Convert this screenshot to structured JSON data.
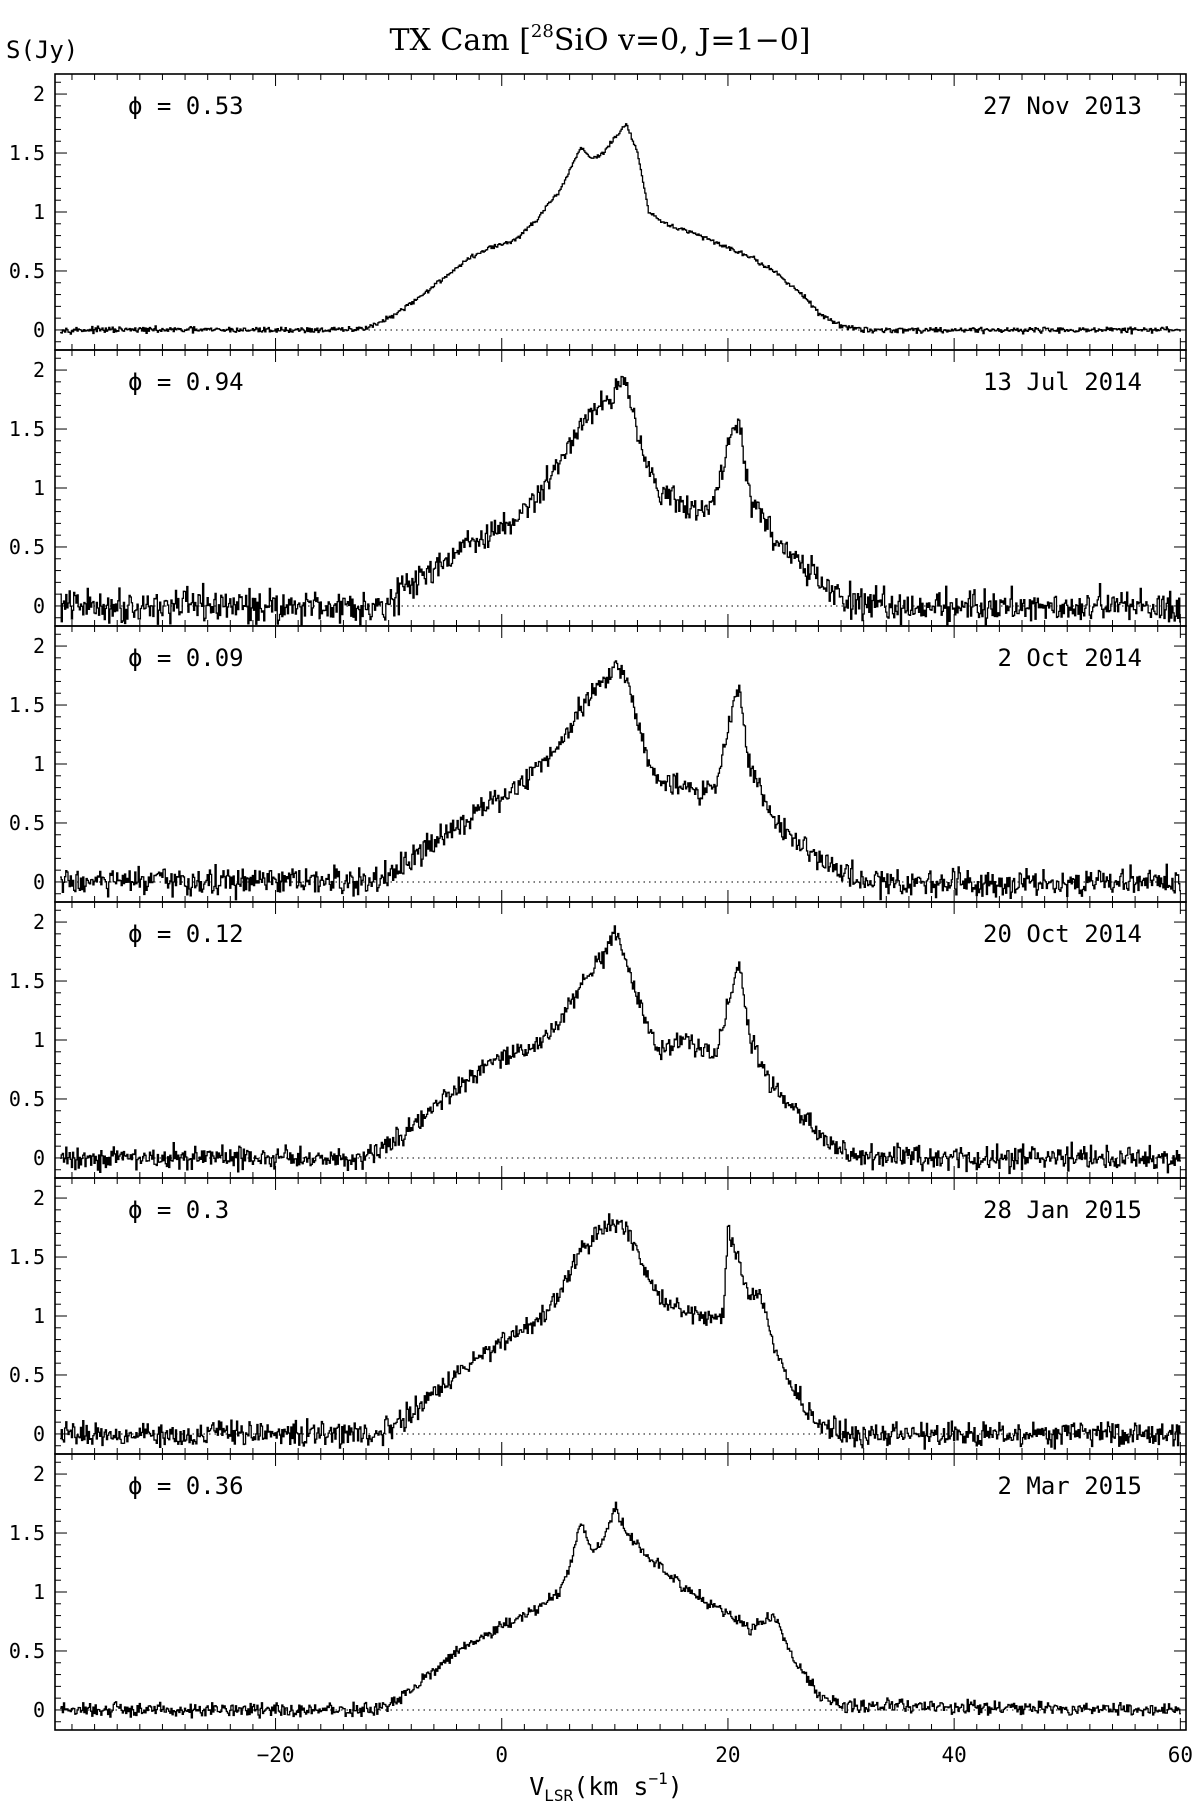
{
  "chart_data": {
    "type": "line",
    "style": "step",
    "title_prefix": "TX Cam [",
    "title_isotope": "28",
    "title_suffix": "SiO v=0, J=1−0]",
    "ylabel": "S(Jy)",
    "xlabel_main": "V",
    "xlabel_sub": "LSR",
    "xlabel_unit": "(km s",
    "xlabel_exp": "−1",
    "xlabel_close": ")",
    "xlim": [
      -39.5,
      60.5
    ],
    "ylim": [
      -0.17,
      2.17
    ],
    "x_ticks": [
      -20,
      0,
      20,
      40,
      60
    ],
    "x_tick_labels": [
      "−20",
      "0",
      "20",
      "40",
      "60"
    ],
    "y_ticks": [
      0,
      0.5,
      1,
      1.5,
      2
    ],
    "y_tick_labels": [
      "0",
      "0.5",
      "1",
      "1.5",
      "2"
    ],
    "panels": [
      {
        "phase_label": "ϕ = 0.53",
        "date": "27 Nov 2013",
        "noise": 0.012,
        "x": [
          -39,
          -13,
          -11,
          -9,
          -7,
          -5,
          -3,
          -1,
          1,
          3,
          4,
          5,
          7,
          8,
          9,
          11,
          12,
          13,
          14,
          16,
          18,
          20,
          22,
          24,
          26,
          28,
          30,
          32,
          60
        ],
        "y": [
          0,
          0,
          0.05,
          0.15,
          0.3,
          0.45,
          0.6,
          0.7,
          0.75,
          0.92,
          1.05,
          1.15,
          1.55,
          1.45,
          1.5,
          1.75,
          1.5,
          1.0,
          0.92,
          0.85,
          0.78,
          0.7,
          0.62,
          0.5,
          0.35,
          0.15,
          0.03,
          0,
          0
        ]
      },
      {
        "phase_label": "ϕ = 0.94",
        "date": "13 Jul 2014",
        "noise": 0.07,
        "x": [
          -39,
          -11,
          -9,
          -7,
          -5,
          -3,
          -1,
          1,
          3,
          5,
          7,
          9,
          10,
          11,
          12,
          13,
          14,
          16,
          18,
          19,
          20,
          21,
          22,
          24,
          26,
          28,
          30,
          32,
          60
        ],
        "y": [
          0,
          0,
          0.1,
          0.25,
          0.4,
          0.52,
          0.6,
          0.72,
          0.9,
          1.2,
          1.55,
          1.75,
          1.8,
          1.9,
          1.5,
          1.2,
          0.95,
          0.85,
          0.8,
          0.95,
          1.4,
          1.55,
          0.9,
          0.6,
          0.4,
          0.2,
          0.08,
          0,
          0
        ]
      },
      {
        "phase_label": "ϕ = 0.09",
        "date": "2 Oct 2014",
        "noise": 0.06,
        "x": [
          -39,
          -11,
          -9,
          -7,
          -5,
          -3,
          -1,
          1,
          3,
          5,
          7,
          9,
          10,
          11,
          12,
          13,
          14,
          16,
          18,
          19,
          20,
          21,
          22,
          24,
          26,
          28,
          30,
          32,
          60
        ],
        "y": [
          0,
          0,
          0.1,
          0.25,
          0.42,
          0.55,
          0.65,
          0.78,
          0.95,
          1.15,
          1.5,
          1.7,
          1.85,
          1.75,
          1.35,
          1.05,
          0.85,
          0.8,
          0.75,
          0.85,
          1.3,
          1.65,
          0.95,
          0.55,
          0.35,
          0.2,
          0.08,
          0,
          0
        ]
      },
      {
        "phase_label": "ϕ = 0.12",
        "date": "20 Oct 2014",
        "noise": 0.05,
        "x": [
          -39,
          -13,
          -11,
          -9,
          -7,
          -5,
          -3,
          -1,
          1,
          3,
          5,
          7,
          9,
          10,
          11,
          12,
          13,
          14,
          16,
          18,
          19,
          20,
          21,
          22,
          24,
          26,
          28,
          30,
          32,
          60
        ],
        "y": [
          0,
          0,
          0.05,
          0.2,
          0.35,
          0.5,
          0.65,
          0.8,
          0.88,
          0.95,
          1.15,
          1.45,
          1.7,
          1.9,
          1.65,
          1.35,
          1.1,
          0.9,
          1.0,
          0.92,
          0.88,
          1.3,
          1.65,
          1.0,
          0.6,
          0.4,
          0.2,
          0.05,
          0,
          0
        ]
      },
      {
        "phase_label": "ϕ = 0.3",
        "date": "28 Jan 2015",
        "noise": 0.05,
        "x": [
          -39,
          -11,
          -9,
          -7,
          -5,
          -3,
          -1,
          1,
          3,
          5,
          7,
          9,
          10,
          11,
          12,
          13,
          14,
          16,
          18,
          19,
          19.6,
          20,
          21,
          22,
          23,
          24,
          26,
          28,
          30,
          60
        ],
        "y": [
          0,
          0,
          0.1,
          0.25,
          0.42,
          0.58,
          0.72,
          0.85,
          0.95,
          1.15,
          1.55,
          1.75,
          1.8,
          1.7,
          1.55,
          1.3,
          1.15,
          1.05,
          0.98,
          0.98,
          1.0,
          1.72,
          1.45,
          1.15,
          1.15,
          0.75,
          0.35,
          0.1,
          0,
          0
        ]
      },
      {
        "phase_label": "ϕ = 0.36",
        "date": "2 Mar 2015",
        "noise": 0.03,
        "x": [
          -39,
          -11,
          -9,
          -7,
          -5,
          -3,
          -1,
          1,
          3,
          5,
          6,
          7,
          8,
          9,
          10,
          11,
          12,
          14,
          16,
          18,
          20,
          22,
          24,
          26,
          28,
          30,
          60
        ],
        "y": [
          0,
          0,
          0.1,
          0.25,
          0.42,
          0.55,
          0.65,
          0.75,
          0.85,
          0.98,
          1.2,
          1.6,
          1.35,
          1.45,
          1.72,
          1.5,
          1.4,
          1.2,
          1.05,
          0.92,
          0.82,
          0.68,
          0.8,
          0.4,
          0.15,
          0.03,
          0
        ]
      }
    ]
  }
}
